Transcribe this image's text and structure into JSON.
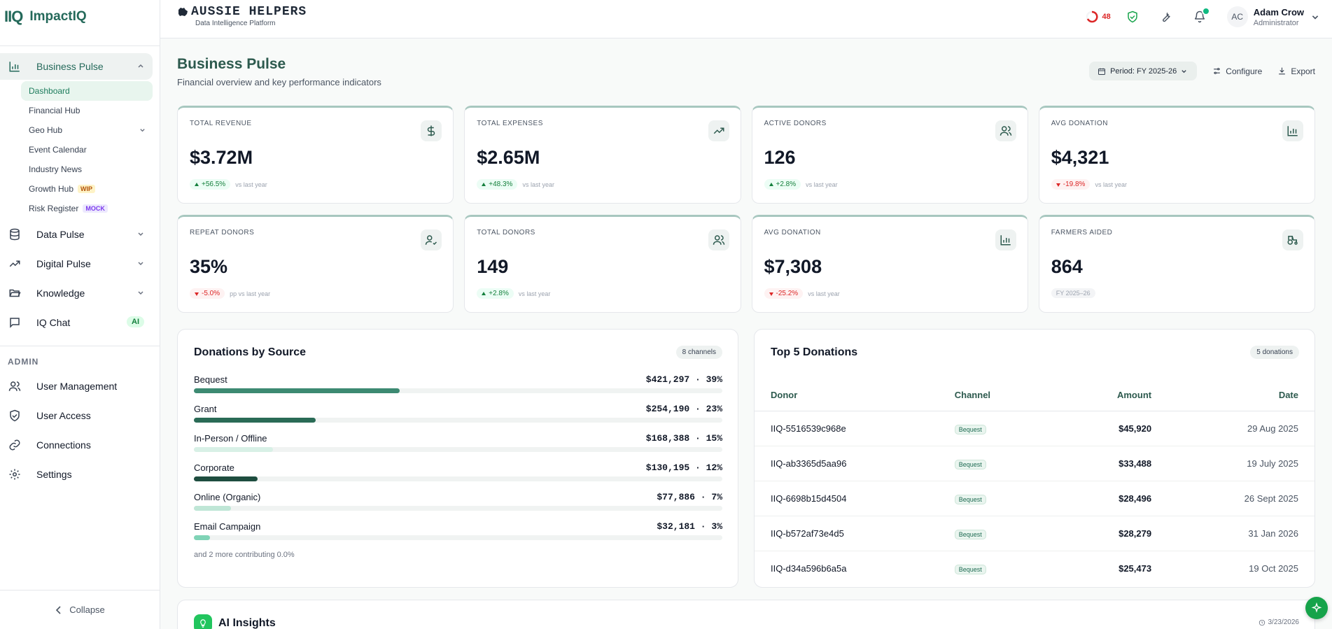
{
  "app": {
    "logo_mark": "IIQ",
    "logo_name_a": "Impact",
    "logo_name_b": "IQ"
  },
  "brand": {
    "title": "AUSSIE HELPERS",
    "subtitle": "Data Intelligence Platform"
  },
  "topbar": {
    "ring_count": "48",
    "user_initials": "AC",
    "user_name": "Adam Crow",
    "user_role": "Administrator"
  },
  "sidebar": {
    "business_pulse": "Business Pulse",
    "sub_items": [
      {
        "label": "Dashboard"
      },
      {
        "label": "Financial Hub"
      },
      {
        "label": "Geo Hub"
      },
      {
        "label": "Event Calendar"
      },
      {
        "label": "Industry News"
      },
      {
        "label": "Growth Hub",
        "tag": "WIP"
      },
      {
        "label": "Risk Register",
        "tag": "MOCK"
      }
    ],
    "data_pulse": "Data Pulse",
    "digital_pulse": "Digital Pulse",
    "knowledge": "Knowledge",
    "iq_chat": "IQ Chat",
    "iq_chat_badge": "AI",
    "admin_label": "ADMIN",
    "user_management": "User Management",
    "user_access": "User Access",
    "connections": "Connections",
    "settings": "Settings",
    "collapse": "Collapse"
  },
  "page": {
    "title": "Business Pulse",
    "subtitle": "Financial overview and key performance indicators",
    "period": "Period: FY 2025-26",
    "configure": "Configure",
    "export": "Export"
  },
  "kpis": [
    {
      "label": "TOTAL REVENUE",
      "value": "$3.72M",
      "change": "+56.5%",
      "dir": "up",
      "note": "vs last year",
      "icon": "dollar-icon"
    },
    {
      "label": "TOTAL EXPENSES",
      "value": "$2.65M",
      "change": "+48.3%",
      "dir": "up",
      "note": "vs last year",
      "icon": "trending-up-icon"
    },
    {
      "label": "ACTIVE DONORS",
      "value": "126",
      "change": "+2.8%",
      "dir": "up",
      "note": "vs last year",
      "icon": "users-icon"
    },
    {
      "label": "AVG DONATION",
      "value": "$4,321",
      "change": "-19.8%",
      "dir": "down",
      "note": "vs last year",
      "icon": "bar-chart-icon"
    },
    {
      "label": "REPEAT DONORS",
      "value": "35%",
      "change": "-5.0%",
      "dir": "down",
      "note": "pp vs last year",
      "icon": "user-check-icon"
    },
    {
      "label": "TOTAL DONORS",
      "value": "149",
      "change": "+2.8%",
      "dir": "up",
      "note": "vs last year",
      "icon": "users-icon"
    },
    {
      "label": "AVG DONATION",
      "value": "$7,308",
      "change": "-25.2%",
      "dir": "down",
      "note": "vs last year",
      "icon": "bar-chart-icon"
    },
    {
      "label": "FARMERS AIDED",
      "value": "864",
      "change": "FY 2025–26",
      "dir": "neutral",
      "note": "",
      "icon": "tractor-icon"
    }
  ],
  "sources": {
    "title": "Donations by Source",
    "badge": "8 channels",
    "items": [
      {
        "name": "Bequest",
        "value": "$421,297 · 39%",
        "pct": 39,
        "color": "#3d8a72"
      },
      {
        "name": "Grant",
        "value": "$254,190 · 23%",
        "pct": 23,
        "color": "#2a6b56"
      },
      {
        "name": "In-Person / Offline",
        "value": "$168,388 · 15%",
        "pct": 15,
        "color": "#d8f0e6"
      },
      {
        "name": "Corporate",
        "value": "$130,195 · 12%",
        "pct": 12,
        "color": "#1e4d3f"
      },
      {
        "name": "Online (Organic)",
        "value": "$77,886 · 7%",
        "pct": 7,
        "color": "#bfe6d6"
      },
      {
        "name": "Email Campaign",
        "value": "$32,181 · 3%",
        "pct": 3,
        "color": "#7fd3b6"
      }
    ],
    "more": "and 2 more contributing 0.0%"
  },
  "top5": {
    "title": "Top 5 Donations",
    "badge": "5 donations",
    "headers": {
      "donor": "Donor",
      "channel": "Channel",
      "amount": "Amount",
      "date": "Date"
    },
    "rows": [
      {
        "donor": "IIQ-5516539c968e",
        "channel": "Bequest",
        "amount": "$45,920",
        "date": "29 Aug 2025"
      },
      {
        "donor": "IIQ-ab3365d5aa96",
        "channel": "Bequest",
        "amount": "$33,488",
        "date": "19 July 2025"
      },
      {
        "donor": "IIQ-6698b15d4504",
        "channel": "Bequest",
        "amount": "$28,496",
        "date": "26 Sept 2025"
      },
      {
        "donor": "IIQ-b572af73e4d5",
        "channel": "Bequest",
        "amount": "$28,279",
        "date": "31 Jan 2026"
      },
      {
        "donor": "IIQ-d34a596b6a5a",
        "channel": "Bequest",
        "amount": "$25,473",
        "date": "19 Oct 2025"
      }
    ]
  },
  "ai": {
    "title": "AI Insights",
    "date": "3/23/2026"
  }
}
